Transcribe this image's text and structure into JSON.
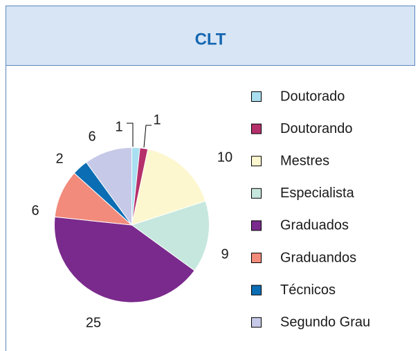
{
  "chart_data": {
    "type": "pie",
    "title": "CLT",
    "categories": [
      "Doutorado",
      "Doutorando",
      "Mestres",
      "Especialista",
      "Graduados",
      "Graduandos",
      "Técnicos",
      "Segundo Grau"
    ],
    "values": [
      1,
      1,
      10,
      9,
      25,
      6,
      2,
      6
    ],
    "colors": [
      "#a9dff1",
      "#b5306b",
      "#fcf7cf",
      "#c6e7de",
      "#7a2a8c",
      "#f28b7b",
      "#0b6db3",
      "#c6c9e7"
    ],
    "legend": "right"
  }
}
